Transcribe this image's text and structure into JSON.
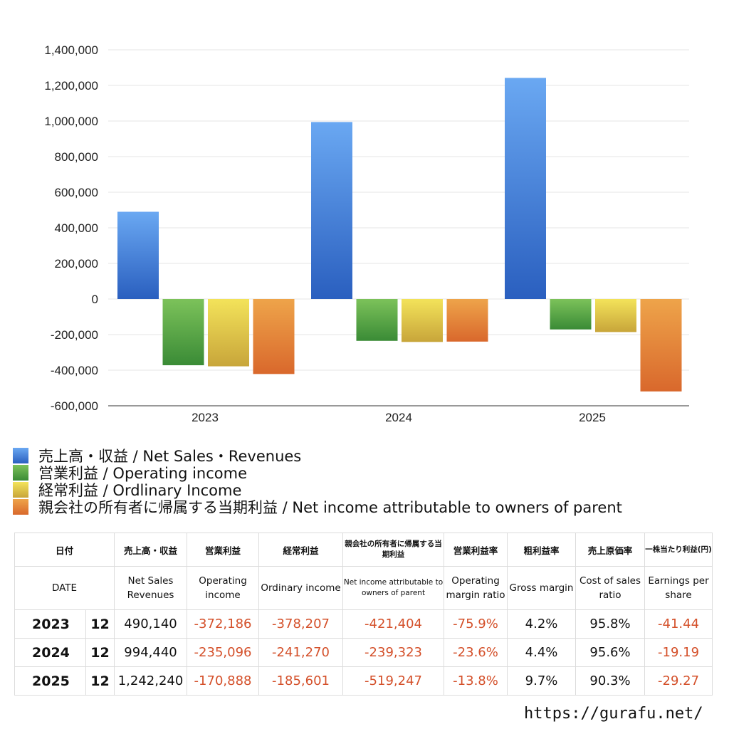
{
  "chart_data": {
    "type": "bar",
    "categories": [
      "2023",
      "2024",
      "2025"
    ],
    "ylim": [
      -600000,
      1400000
    ],
    "yticks": [
      1400000,
      1200000,
      1000000,
      800000,
      600000,
      400000,
      200000,
      0,
      -200000,
      -400000,
      -600000
    ],
    "ytick_labels": [
      "1,400,000",
      "1,200,000",
      "1,000,000",
      "800,000",
      "600,000",
      "400,000",
      "200,000",
      "0",
      "-200,000",
      "-400,000",
      "-600,000"
    ],
    "grid": true,
    "legend_position": "bottom",
    "series": [
      {
        "name": "売上高・収益 / Net Sales・Revenues",
        "values": [
          490140,
          994440,
          1242240
        ],
        "color_top": "#6aa8f2",
        "color_bottom": "#2a5fbf"
      },
      {
        "name": "営業利益 / Operating income",
        "values": [
          -372186,
          -235096,
          -170888
        ],
        "color_top": "#7cc25a",
        "color_bottom": "#3a8b36"
      },
      {
        "name": "経常利益 / Ordlinary Income",
        "values": [
          -378207,
          -241270,
          -185601
        ],
        "color_top": "#f3e35a",
        "color_bottom": "#c8a53a"
      },
      {
        "name": "親会社の所有者に帰属する当期利益 / Net income attributable to owners of parent",
        "values": [
          -421404,
          -239323,
          -519247
        ],
        "color_top": "#eea44a",
        "color_bottom": "#d9682c"
      }
    ]
  },
  "table": {
    "header_jp": [
      "日付",
      "売上高・収益",
      "営業利益",
      "経常利益",
      "親会社の所有者に帰属する当期利益",
      "営業利益率",
      "粗利益率",
      "売上原価率",
      "一株当たり利益(円)"
    ],
    "header_en": [
      "DATE",
      "Net Sales Revenues",
      "Operating income",
      "Ordinary income",
      "Net income attributable to owners of parent",
      "Operating margin ratio",
      "Gross margin",
      "Cost of sales ratio",
      "Earnings per share"
    ],
    "rows": [
      {
        "year": "2023",
        "month": "12",
        "sales": "490,140",
        "op": "-372,186",
        "ord": "-378,207",
        "net": "-421,404",
        "opm": "-75.9%",
        "gm": "4.2%",
        "cos": "95.8%",
        "eps": "-41.44"
      },
      {
        "year": "2024",
        "month": "12",
        "sales": "994,440",
        "op": "-235,096",
        "ord": "-241,270",
        "net": "-239,323",
        "opm": "-23.6%",
        "gm": "4.4%",
        "cos": "95.6%",
        "eps": "-19.19"
      },
      {
        "year": "2025",
        "month": "12",
        "sales": "1,242,240",
        "op": "-170,888",
        "ord": "-185,601",
        "net": "-519,247",
        "opm": "-13.8%",
        "gm": "9.7%",
        "cos": "90.3%",
        "eps": "-29.27"
      }
    ]
  },
  "footer": {
    "url": "https://gurafu.net/"
  }
}
